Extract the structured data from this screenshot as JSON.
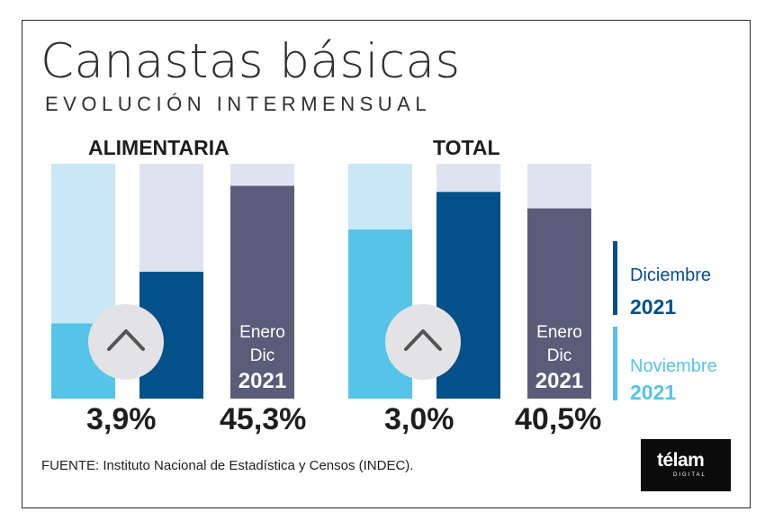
{
  "title": "Canastas básicas",
  "subtitle": "EVOLUCIÓN INTERMENSUAL",
  "source": "FUENTE: Instituto Nacional de Estadística y Censos (INDEC).",
  "logo": {
    "text": "télam",
    "sub": "DIGITAL"
  },
  "legend": {
    "dec": {
      "period": "Diciembre",
      "year": "2021",
      "color": "#03508a"
    },
    "nov": {
      "period": "Noviembre",
      "year": "2021",
      "color": "#55c4e8"
    }
  },
  "colors": {
    "track_light": "#c9e7f5",
    "track_grey": "#dfe3ef",
    "annual": "#5a5d7a",
    "arrow_circle": "#e3e3e5",
    "arrow": "#555555"
  },
  "chart_data": [
    {
      "type": "bar",
      "title": "ALIMENTARIA",
      "monthly": {
        "Noviembre 2021": 1.6,
        "Diciembre 2021": 2.7,
        "note_value": "3,9%"
      },
      "annual": {
        "label_top": "Enero",
        "label_mid": "Dic",
        "label_year": "2021",
        "value": 45.3,
        "display": "45,3%"
      },
      "value_scale_max": 5.0,
      "annual_scale_max": 50
    },
    {
      "type": "bar",
      "title": "TOTAL",
      "monthly": {
        "Noviembre 2021": 3.6,
        "Diciembre 2021": 4.4,
        "note_value": "3,0%"
      },
      "annual": {
        "label_top": "Enero",
        "label_mid": "Dic",
        "label_year": "2021",
        "value": 40.5,
        "display": "40,5%"
      },
      "value_scale_max": 5.0,
      "annual_scale_max": 50
    }
  ]
}
